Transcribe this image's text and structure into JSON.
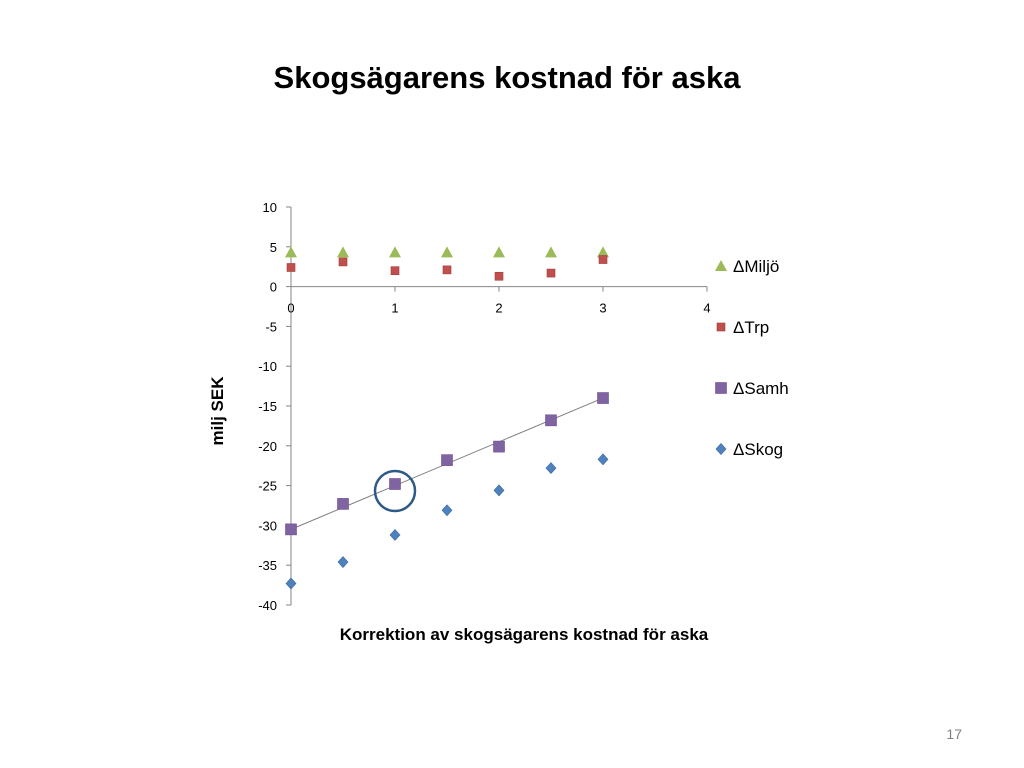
{
  "slide": {
    "title": "Skogsägarens kostnad för aska",
    "page_number": "17"
  },
  "colors": {
    "miljo": "#9BBB59",
    "trp": "#C0504D",
    "samh": "#8064A2",
    "skog": "#4F81BD",
    "trendline": "#7f7f7f",
    "highlight_circle": "#2E5A88",
    "axis": "#868686"
  },
  "chart_data": {
    "type": "scatter",
    "title": "",
    "xlabel": "Korrektion av skogsägarens kostnad för aska",
    "ylabel": "milj SEK",
    "xlim": [
      0,
      4
    ],
    "ylim": [
      -40,
      10
    ],
    "x_ticks": [
      0,
      1,
      2,
      3,
      4
    ],
    "y_ticks": [
      10,
      5,
      0,
      -5,
      -10,
      -15,
      -20,
      -25,
      -30,
      -35,
      -40
    ],
    "x_axis_crosses_at_y": 0,
    "grid": false,
    "legend_position": "right",
    "series": [
      {
        "name": "ΔMiljö",
        "marker": "triangle",
        "color": "#9BBB59",
        "x": [
          0,
          0.5,
          1,
          1.5,
          2,
          2.5,
          3
        ],
        "y": [
          4.3,
          4.3,
          4.3,
          4.3,
          4.3,
          4.3,
          4.3
        ]
      },
      {
        "name": "ΔTrp",
        "marker": "square-small",
        "color": "#C0504D",
        "x": [
          0,
          0.5,
          1,
          1.5,
          2,
          2.5,
          3
        ],
        "y": [
          2.4,
          3.1,
          2.0,
          2.1,
          1.3,
          1.7,
          3.4
        ]
      },
      {
        "name": "ΔSamh",
        "marker": "square",
        "color": "#8064A2",
        "x": [
          0,
          0.5,
          1,
          1.5,
          2,
          2.5,
          3
        ],
        "y": [
          -30.5,
          -27.3,
          -24.8,
          -21.8,
          -20.1,
          -16.8,
          -14.0
        ]
      },
      {
        "name": "ΔSkog",
        "marker": "diamond",
        "color": "#4F81BD",
        "x": [
          0,
          0.5,
          1,
          1.5,
          2,
          2.5,
          3
        ],
        "y": [
          -37.3,
          -34.6,
          -31.2,
          -28.1,
          -25.6,
          -22.8,
          -21.7
        ]
      }
    ],
    "trendline": {
      "series": "ΔSamh",
      "type": "linear",
      "x": [
        0,
        3
      ],
      "y": [
        -30.5,
        -14.0
      ]
    },
    "annotations": [
      {
        "type": "circle",
        "series": "ΔSamh",
        "x": 1,
        "y": -24.8
      }
    ]
  }
}
